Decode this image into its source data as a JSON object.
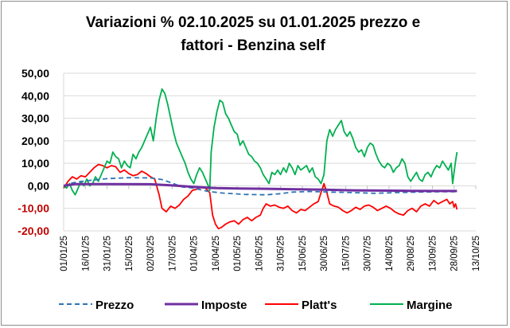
{
  "chart_data": {
    "type": "line",
    "title_line1": "Variazioni % 02.10.2025 su 01.01.2025 prezzo e",
    "title_line2": "fattori - Benzina self",
    "xlabel": "",
    "ylabel": "",
    "ylim": [
      -20,
      50
    ],
    "yticks": [
      50,
      40,
      30,
      20,
      10,
      0,
      -10,
      -20
    ],
    "ytick_labels": [
      "50,00",
      "40,00",
      "30,00",
      "20,00",
      "10,00",
      "0,00",
      "-10,00",
      "-20,00"
    ],
    "ytick_colors": [
      "#000000",
      "#000000",
      "#000000",
      "#000000",
      "#000000",
      "#000000",
      "#c00000",
      "#c00000"
    ],
    "xticks": [
      "01/01/25",
      "16/01/25",
      "31/01/25",
      "15/02/25",
      "02/03/25",
      "17/03/25",
      "01/04/25",
      "16/04/25",
      "01/05/25",
      "16/05/25",
      "31/05/25",
      "15/06/25",
      "30/06/25",
      "15/07/25",
      "30/07/25",
      "14/08/25",
      "29/08/25",
      "13/09/25",
      "28/09/25",
      "13/10/25"
    ],
    "grid": "horizontal",
    "legend_position": "bottom",
    "series": [
      {
        "name": "Prezzo",
        "color": "#2e75b6",
        "style": "dashed",
        "points": [
          [
            0,
            0
          ],
          [
            5,
            1.2
          ],
          [
            15,
            2.2
          ],
          [
            30,
            3.2
          ],
          [
            45,
            3.6
          ],
          [
            60,
            3.5
          ],
          [
            68,
            2.8
          ],
          [
            75,
            1.2
          ],
          [
            82,
            -0.5
          ],
          [
            90,
            -1.0
          ],
          [
            100,
            -2.5
          ],
          [
            110,
            -3.2
          ],
          [
            125,
            -3.8
          ],
          [
            140,
            -4.0
          ],
          [
            150,
            -3.5
          ],
          [
            158,
            -2.8
          ],
          [
            170,
            -2.5
          ],
          [
            185,
            -2.8
          ],
          [
            200,
            -3.0
          ],
          [
            215,
            -3.3
          ],
          [
            230,
            -3.0
          ],
          [
            245,
            -2.8
          ],
          [
            263,
            -2.6
          ],
          [
            272,
            -2.6
          ]
        ]
      },
      {
        "name": "Imposte",
        "color": "#7030a0",
        "style": "solid",
        "points": [
          [
            0,
            0
          ],
          [
            8,
            0.8
          ],
          [
            30,
            0.8
          ],
          [
            60,
            0.7
          ],
          [
            75,
            0.2
          ],
          [
            90,
            -0.5
          ],
          [
            105,
            -1.0
          ],
          [
            120,
            -1.2
          ],
          [
            140,
            -1.3
          ],
          [
            160,
            -1.5
          ],
          [
            180,
            -1.7
          ],
          [
            200,
            -2.0
          ],
          [
            220,
            -2.1
          ],
          [
            240,
            -2.2
          ],
          [
            260,
            -2.3
          ],
          [
            272,
            -2.3
          ]
        ]
      },
      {
        "name": "Platt's",
        "color": "#ff0000",
        "style": "solid",
        "points": [
          [
            0,
            -1
          ],
          [
            3,
            2
          ],
          [
            6,
            4
          ],
          [
            9,
            3
          ],
          [
            12,
            4.5
          ],
          [
            15,
            4
          ],
          [
            18,
            6
          ],
          [
            21,
            8
          ],
          [
            24,
            9.5
          ],
          [
            27,
            9
          ],
          [
            30,
            8
          ],
          [
            33,
            9
          ],
          [
            36,
            8.5
          ],
          [
            39,
            6
          ],
          [
            42,
            7
          ],
          [
            45,
            5.5
          ],
          [
            48,
            4.5
          ],
          [
            51,
            5
          ],
          [
            54,
            6.5
          ],
          [
            57,
            5.5
          ],
          [
            60,
            4
          ],
          [
            63,
            3
          ],
          [
            66,
            -4
          ],
          [
            68,
            -10
          ],
          [
            71,
            -11.5
          ],
          [
            74,
            -9
          ],
          [
            77,
            -10
          ],
          [
            80,
            -8.5
          ],
          [
            83,
            -6
          ],
          [
            86,
            -4.5
          ],
          [
            89,
            -2
          ],
          [
            92,
            -1.5
          ],
          [
            95,
            -0.5
          ],
          [
            98,
            -1
          ],
          [
            101,
            -3
          ],
          [
            103,
            -13
          ],
          [
            105,
            -17
          ],
          [
            107,
            -19
          ],
          [
            109,
            -18.5
          ],
          [
            112,
            -17
          ],
          [
            115,
            -16
          ],
          [
            118,
            -15.5
          ],
          [
            121,
            -17
          ],
          [
            124,
            -15
          ],
          [
            127,
            -14
          ],
          [
            130,
            -15.5
          ],
          [
            133,
            -14
          ],
          [
            136,
            -13
          ],
          [
            138,
            -10
          ],
          [
            140,
            -8
          ],
          [
            143,
            -9
          ],
          [
            146,
            -8.5
          ],
          [
            149,
            -9.5
          ],
          [
            152,
            -10
          ],
          [
            155,
            -9
          ],
          [
            158,
            -11
          ],
          [
            161,
            -12
          ],
          [
            164,
            -10.5
          ],
          [
            167,
            -11
          ],
          [
            170,
            -9.5
          ],
          [
            173,
            -8
          ],
          [
            176,
            -7
          ],
          [
            178,
            -3
          ],
          [
            180,
            1
          ],
          [
            182,
            -3
          ],
          [
            184,
            -8
          ],
          [
            187,
            -9
          ],
          [
            190,
            -9.5
          ],
          [
            193,
            -11
          ],
          [
            196,
            -12
          ],
          [
            199,
            -11
          ],
          [
            202,
            -9.5
          ],
          [
            205,
            -10.5
          ],
          [
            208,
            -9
          ],
          [
            211,
            -8.5
          ],
          [
            214,
            -9.5
          ],
          [
            217,
            -11
          ],
          [
            220,
            -10
          ],
          [
            223,
            -9
          ],
          [
            226,
            -10
          ],
          [
            229,
            -11.5
          ],
          [
            232,
            -12.5
          ],
          [
            235,
            -13
          ],
          [
            238,
            -11
          ],
          [
            241,
            -10
          ],
          [
            244,
            -11.5
          ],
          [
            247,
            -9
          ],
          [
            250,
            -8
          ],
          [
            253,
            -9
          ],
          [
            256,
            -6.5
          ],
          [
            259,
            -8
          ],
          [
            262,
            -7
          ],
          [
            265,
            -6
          ],
          [
            267,
            -8
          ],
          [
            269,
            -7
          ],
          [
            270,
            -9.5
          ],
          [
            271,
            -8
          ],
          [
            272,
            -10.5
          ]
        ]
      },
      {
        "name": "Margine",
        "color": "#00b050",
        "style": "solid",
        "points": [
          [
            0,
            0
          ],
          [
            2,
            -1
          ],
          [
            4,
            1
          ],
          [
            6,
            -2
          ],
          [
            8,
            -4
          ],
          [
            10,
            -1
          ],
          [
            12,
            2
          ],
          [
            14,
            0
          ],
          [
            16,
            3
          ],
          [
            18,
            0
          ],
          [
            20,
            1
          ],
          [
            22,
            4
          ],
          [
            24,
            2
          ],
          [
            26,
            5
          ],
          [
            28,
            8
          ],
          [
            30,
            11
          ],
          [
            32,
            10
          ],
          [
            34,
            15
          ],
          [
            36,
            13
          ],
          [
            38,
            12
          ],
          [
            40,
            8
          ],
          [
            42,
            11
          ],
          [
            44,
            9
          ],
          [
            46,
            8
          ],
          [
            48,
            14
          ],
          [
            50,
            12
          ],
          [
            52,
            15
          ],
          [
            54,
            17
          ],
          [
            56,
            20
          ],
          [
            58,
            23
          ],
          [
            60,
            26
          ],
          [
            62,
            20
          ],
          [
            64,
            30
          ],
          [
            66,
            38
          ],
          [
            68,
            43
          ],
          [
            70,
            41
          ],
          [
            72,
            36
          ],
          [
            74,
            30
          ],
          [
            76,
            24
          ],
          [
            78,
            19
          ],
          [
            80,
            16
          ],
          [
            82,
            13
          ],
          [
            84,
            10
          ],
          [
            86,
            6
          ],
          [
            88,
            3
          ],
          [
            90,
            1
          ],
          [
            92,
            5
          ],
          [
            94,
            8
          ],
          [
            96,
            6
          ],
          [
            98,
            3
          ],
          [
            100,
            0
          ],
          [
            101,
            -2
          ],
          [
            102,
            15
          ],
          [
            104,
            26
          ],
          [
            106,
            33
          ],
          [
            108,
            38
          ],
          [
            110,
            37
          ],
          [
            112,
            32
          ],
          [
            114,
            30
          ],
          [
            116,
            27
          ],
          [
            118,
            24
          ],
          [
            120,
            23
          ],
          [
            122,
            18
          ],
          [
            124,
            20
          ],
          [
            126,
            17
          ],
          [
            128,
            14
          ],
          [
            130,
            13
          ],
          [
            132,
            11
          ],
          [
            134,
            10
          ],
          [
            136,
            8
          ],
          [
            138,
            5
          ],
          [
            140,
            3
          ],
          [
            142,
            1
          ],
          [
            144,
            6
          ],
          [
            146,
            5
          ],
          [
            148,
            7
          ],
          [
            150,
            5
          ],
          [
            152,
            8
          ],
          [
            154,
            6
          ],
          [
            156,
            10
          ],
          [
            158,
            8
          ],
          [
            160,
            5
          ],
          [
            162,
            9
          ],
          [
            164,
            7
          ],
          [
            166,
            8
          ],
          [
            168,
            9
          ],
          [
            170,
            6
          ],
          [
            172,
            8
          ],
          [
            174,
            4
          ],
          [
            176,
            3
          ],
          [
            178,
            1
          ],
          [
            180,
            5
          ],
          [
            182,
            20
          ],
          [
            184,
            25
          ],
          [
            186,
            22
          ],
          [
            188,
            25
          ],
          [
            190,
            27
          ],
          [
            192,
            29
          ],
          [
            194,
            24
          ],
          [
            196,
            22
          ],
          [
            198,
            24
          ],
          [
            200,
            21
          ],
          [
            202,
            17
          ],
          [
            204,
            15
          ],
          [
            206,
            16
          ],
          [
            208,
            13
          ],
          [
            210,
            17
          ],
          [
            212,
            19
          ],
          [
            214,
            18
          ],
          [
            216,
            14
          ],
          [
            218,
            11
          ],
          [
            220,
            9
          ],
          [
            222,
            8
          ],
          [
            224,
            10
          ],
          [
            226,
            9
          ],
          [
            228,
            6
          ],
          [
            230,
            8
          ],
          [
            232,
            9
          ],
          [
            234,
            12
          ],
          [
            236,
            10
          ],
          [
            238,
            4
          ],
          [
            240,
            2
          ],
          [
            242,
            4
          ],
          [
            244,
            6
          ],
          [
            246,
            3
          ],
          [
            248,
            2
          ],
          [
            250,
            5
          ],
          [
            252,
            6
          ],
          [
            254,
            4
          ],
          [
            256,
            7
          ],
          [
            258,
            9
          ],
          [
            260,
            8
          ],
          [
            262,
            11
          ],
          [
            264,
            9
          ],
          [
            266,
            7
          ],
          [
            268,
            10
          ],
          [
            269,
            1
          ],
          [
            270,
            6
          ],
          [
            271,
            11
          ],
          [
            272,
            15
          ]
        ]
      }
    ]
  }
}
